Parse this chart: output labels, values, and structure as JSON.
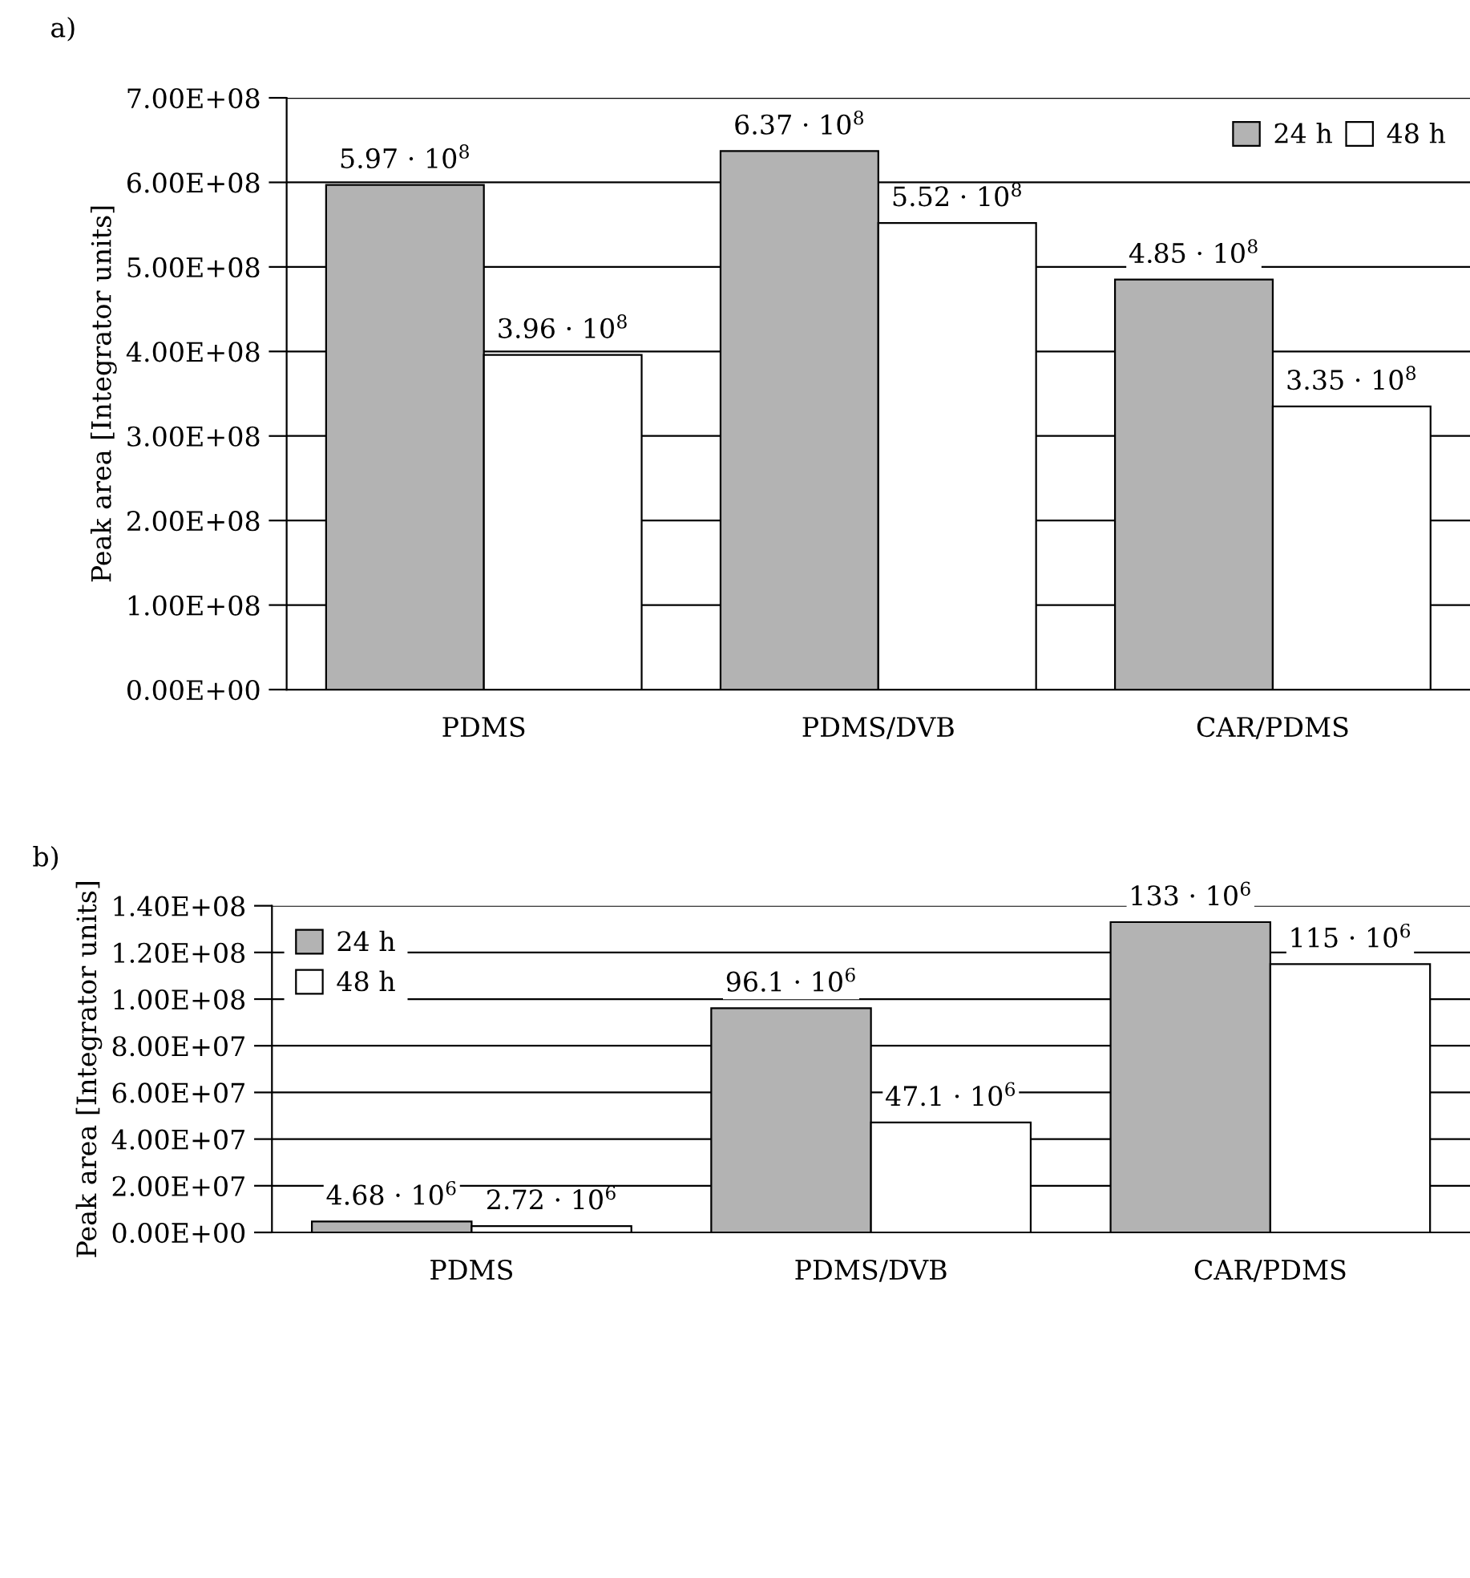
{
  "chart_data": [
    {
      "type": "bar",
      "title": "a)",
      "ylabel": "Peak area [Integrator units]",
      "categories": [
        "PDMS",
        "PDMS/DVB",
        "CAR/PDMS"
      ],
      "series": [
        {
          "name": "24 h",
          "color": "#b3b3b3",
          "values": [
            597000000,
            637000000,
            485000000
          ],
          "value_labels": [
            "5.97 · 10$^{8}$",
            "6.37 · 10$^{8}$",
            "4.85 · 10$^{8}$"
          ]
        },
        {
          "name": "48 h",
          "color": "#ffffff",
          "values": [
            396000000,
            552000000,
            335000000
          ],
          "value_labels": [
            "3.96 · 10$^{8}$",
            "5.52 · 10$^{8}$",
            "3.35 · 10$^{8}$"
          ]
        }
      ],
      "ylim": [
        0,
        700000000
      ],
      "yticks": [
        {
          "value": 0,
          "label": "0.00E+00"
        },
        {
          "value": 100000000,
          "label": "1.00E+08"
        },
        {
          "value": 200000000,
          "label": "2.00E+08"
        },
        {
          "value": 300000000,
          "label": "3.00E+08"
        },
        {
          "value": 400000000,
          "label": "4.00E+08"
        },
        {
          "value": 500000000,
          "label": "5.00E+08"
        },
        {
          "value": 600000000,
          "label": "6.00E+08"
        },
        {
          "value": 700000000,
          "label": "7.00E+08"
        }
      ],
      "grid": "y",
      "legend": "top right"
    },
    {
      "type": "bar",
      "title": "b)",
      "ylabel": "Peak area [Integrator units]",
      "categories": [
        "PDMS",
        "PDMS/DVB",
        "CAR/PDMS"
      ],
      "series": [
        {
          "name": "24 h",
          "color": "#b3b3b3",
          "values": [
            4680000,
            96100000,
            133000000
          ],
          "value_labels": [
            "4.68 · 10$^{6}$",
            "96.1 · 10$^{6}$",
            "133 · 10$^{6}$"
          ]
        },
        {
          "name": "48 h",
          "color": "#ffffff",
          "values": [
            2720000,
            47100000,
            115000000
          ],
          "value_labels": [
            "2.72 · 10$^{6}$",
            "47.1 · 10$^{6}$",
            "115 · 10$^{6}$"
          ]
        }
      ],
      "ylim": [
        0,
        140000000
      ],
      "yticks": [
        {
          "value": 0,
          "label": "0.00E+00"
        },
        {
          "value": 20000000,
          "label": "2.00E+07"
        },
        {
          "value": 40000000,
          "label": "4.00E+07"
        },
        {
          "value": 60000000,
          "label": "6.00E+07"
        },
        {
          "value": 80000000,
          "label": "8.00E+07"
        },
        {
          "value": 100000000,
          "label": "1.00E+08"
        },
        {
          "value": 120000000,
          "label": "1.20E+08"
        },
        {
          "value": 140000000,
          "label": "1.40E+08"
        }
      ],
      "grid": "y",
      "legend": "top left"
    }
  ]
}
